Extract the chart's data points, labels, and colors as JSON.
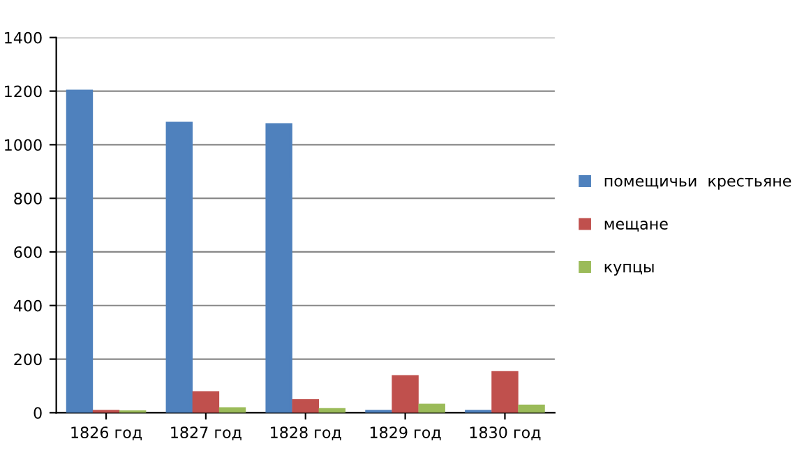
{
  "chart_data": {
    "type": "bar",
    "categories": [
      "1826 год",
      "1827 год",
      "1828 год",
      "1829 год",
      "1830 год"
    ],
    "series": [
      {
        "name": "помещичьи  крестьяне",
        "color": "#4f81bd",
        "values": [
          1200,
          1080,
          1075,
          5,
          5
        ]
      },
      {
        "name": "мещане",
        "color": "#c0504d",
        "values": [
          5,
          75,
          45,
          135,
          150
        ]
      },
      {
        "name": "купцы",
        "color": "#9bbb59",
        "values": [
          3,
          15,
          12,
          28,
          25
        ]
      }
    ],
    "ylim": [
      0,
      1400
    ],
    "yticks": [
      0,
      200,
      400,
      600,
      800,
      1000,
      1200,
      1400
    ],
    "grid": "y",
    "legend": "right"
  }
}
